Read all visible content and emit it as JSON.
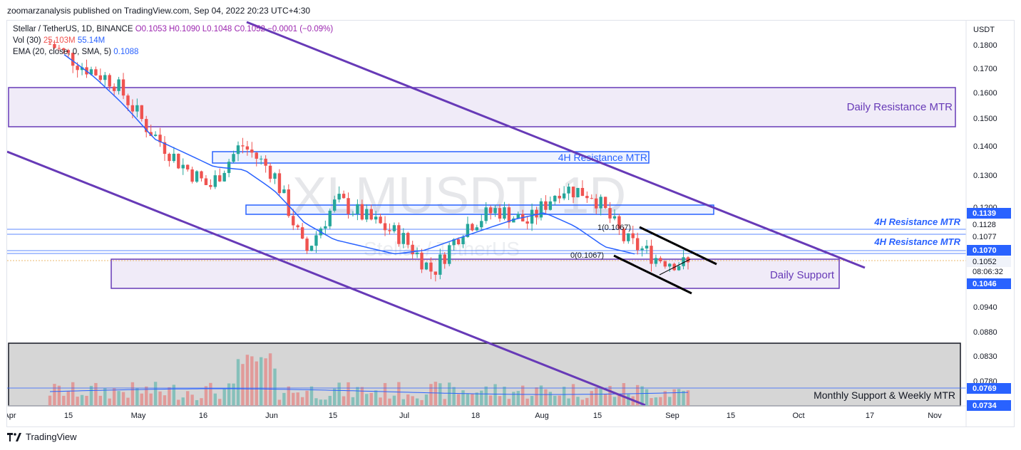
{
  "header": {
    "published": "zoomarzanalysis published on TradingView.com, Sep 04, 2022 20:23 UTC+4:30"
  },
  "legend": {
    "symbol": "Stellar / TetherUS, 1D, BINANCE",
    "ohlc": "O0.1053  H0.1090  L0.1048  C0.1052  −0.0001 (−0.09%)",
    "vol_label": "Vol (30)",
    "vol_value1": "25.103M",
    "vol_value2": "55.14M",
    "ema_label": "EMA (20, close, 0, SMA, 5)",
    "ema_value": "0.1088"
  },
  "watermark": {
    "ticker": "XLMUSDT, 1D",
    "name": "Stellar / TetherUS"
  },
  "annotations": {
    "daily_resistance": "Daily Resistance MTR",
    "h4_resistance_box": "4H Resistance MTR",
    "h4_resistance_1": "4H Resistance MTR",
    "h4_resistance_2": "4H Resistance MTR",
    "daily_support": "Daily Support",
    "monthly_support": "Monthly Support & Weekly MTR",
    "fib_1": "1(0.1067)",
    "fib_0": "0(0.1067)"
  },
  "price_axis": {
    "currency": "USDT",
    "countdown": "08:06:32"
  },
  "price_tags": [
    {
      "label": "0.1139",
      "bg": "#2962ff"
    },
    {
      "label": "0.1128",
      "bg": "none"
    },
    {
      "label": "0.1077",
      "bg": "none"
    },
    {
      "label": "0.1070",
      "bg": "#2962ff"
    },
    {
      "label": "0.1052",
      "bg": "#f0f3fa"
    },
    {
      "label": "0.1046",
      "bg": "#2962ff"
    },
    {
      "label": "0.0769",
      "bg": "#2962ff"
    },
    {
      "label": "0.0734",
      "bg": "#2962ff"
    }
  ],
  "footer": {
    "brand": "TradingView"
  },
  "colors": {
    "up": "#26a69a",
    "down": "#ef5350",
    "ema": "#2962ff",
    "channel": "#673ab7",
    "zone_fill": "rgba(103,58,183,0.10)",
    "h4_zone_fill": "rgba(41,98,255,0.08)"
  },
  "chart_data": {
    "type": "candlestick",
    "title": "Stellar / TetherUS, 1D, BINANCE",
    "x_ticks": [
      "Apr",
      "15",
      "May",
      "16",
      "Jun",
      "15",
      "Jul",
      "18",
      "Aug",
      "15",
      "Sep",
      "15",
      "Oct",
      "17",
      "Nov"
    ],
    "y_ticks": [
      "0.1800",
      "0.1700",
      "0.1600",
      "0.1500",
      "0.1400",
      "0.1300",
      "0.1200",
      "0.0940",
      "0.0880",
      "0.0830",
      "0.0780"
    ],
    "y_scale": "log",
    "series": [
      {
        "name": "XLM/USDT close",
        "approx_closes": [
          0.185,
          0.175,
          0.168,
          0.15,
          0.137,
          0.128,
          0.143,
          0.133,
          0.108,
          0.124,
          0.118,
          0.113,
          0.103,
          0.116,
          0.121,
          0.117,
          0.128,
          0.126,
          0.112,
          0.107,
          0.105
        ]
      },
      {
        "name": "EMA (20)",
        "approx_values": [
          0.18,
          0.17,
          0.158,
          0.145,
          0.14,
          0.135,
          0.134,
          0.127,
          0.117,
          0.112,
          0.11,
          0.108,
          0.109,
          0.112,
          0.115,
          0.118,
          0.12,
          0.116,
          0.11,
          0.108
        ]
      }
    ],
    "zones": [
      {
        "name": "Daily Resistance MTR",
        "from": 0.147,
        "to": 0.162
      },
      {
        "name": "4H Resistance MTR",
        "from": 0.135,
        "to": 0.138
      },
      {
        "name": "4H Resistance MTR",
        "from": 0.1139,
        "to": 0.116
      },
      {
        "name": "Daily Support",
        "from": 0.1,
        "to": 0.1062
      },
      {
        "name": "Monthly Support & Weekly MTR",
        "from": 0.0734,
        "to": 0.0769
      }
    ],
    "levels": [
      0.1139,
      0.1128,
      0.1077,
      0.107,
      0.1052,
      0.1046,
      0.0769,
      0.0734
    ],
    "last_price": 0.1052
  }
}
